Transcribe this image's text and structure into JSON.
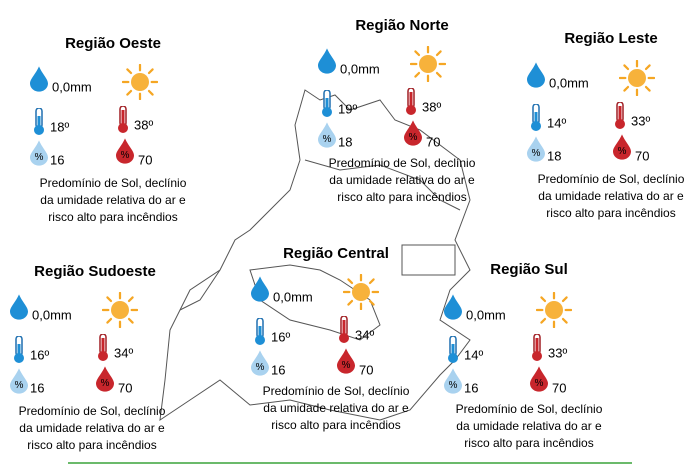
{
  "regions": [
    {
      "name": "Região Oeste",
      "rain": "0,0mm",
      "tmin": "18º",
      "tmax": "38º",
      "hmin": "16",
      "hmax": "70",
      "text": [
        "Predomínio de Sol, declínio",
        "da umidade relativa do ar e",
        "risco alto para incêndios"
      ]
    },
    {
      "name": "Região Norte",
      "rain": "0,0mm",
      "tmin": "19º",
      "tmax": "38º",
      "hmin": "18",
      "hmax": "70",
      "text": [
        "Predomínio de Sol, declínio",
        "da umidade relativa do ar e",
        "risco alto para incêndios"
      ]
    },
    {
      "name": "Região Leste",
      "rain": "0,0mm",
      "tmin": "14º",
      "tmax": "33º",
      "hmin": "18",
      "hmax": "70",
      "text": [
        "Predomínio de Sol, declínio",
        "da umidade relativa do ar e",
        "risco alto para incêndios"
      ]
    },
    {
      "name": "Região Sudoeste",
      "rain": "0,0mm",
      "tmin": "16º",
      "tmax": "34º",
      "hmin": "16",
      "hmax": "70",
      "text": [
        "Predomínio de Sol, declínio",
        "da umidade relativa do ar e",
        "risco alto para incêndios"
      ]
    },
    {
      "name": "Região Central",
      "rain": "0,0mm",
      "tmin": "16º",
      "tmax": "34º",
      "hmin": "16",
      "hmax": "70",
      "text": [
        "Predomínio de Sol, declínio",
        "da umidade relativa do ar e",
        "risco alto para incêndios"
      ]
    },
    {
      "name": "Região Sul",
      "rain": "0,0mm",
      "tmin": "14º",
      "tmax": "33º",
      "hmin": "16",
      "hmax": "70",
      "text": [
        "Predomínio de Sol, declínio",
        "da umidade relativa do ar e",
        "risco alto para incêndios"
      ]
    }
  ]
}
